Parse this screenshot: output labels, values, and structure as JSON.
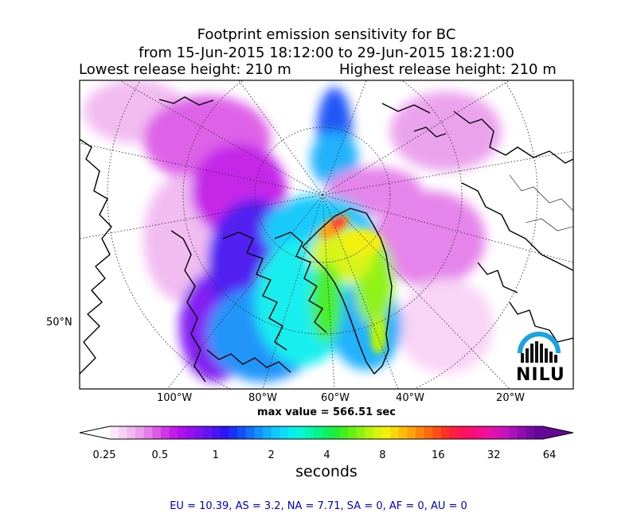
{
  "title": {
    "line1": "Footprint emission sensitivity for BC",
    "line2": "from 15-Jun-2015 18:12:00  to 29-Jun-2015 18:21:00",
    "line3_left": "Lowest release height: 210 m",
    "line3_right": "Highest release height: 210 m"
  },
  "colors": {
    "land_outline": "#000000",
    "graticule": "#333333",
    "logo_arc": "#1aa3e0",
    "logo_text": "#111111",
    "footer_text": "#0000cc"
  },
  "logo": {
    "text": "NILU",
    "icon": "nilu-logo-icon"
  },
  "max_value_text": "max value = 566.51 sec",
  "chart_data": {
    "type": "heatmap",
    "projection": "north polar stereographic",
    "x_ticks": [
      "100°W",
      "80°W",
      "60°W",
      "40°W",
      "20°W"
    ],
    "y_ticks": [
      "50°N"
    ],
    "colorbar": {
      "scale": "log",
      "ticks": [
        "0.25",
        "0.5",
        "1",
        "2",
        "4",
        "8",
        "16",
        "32",
        "64"
      ],
      "tick_values": [
        0.25,
        0.5,
        1,
        2,
        4,
        8,
        16,
        32,
        64
      ],
      "extend": "both",
      "label": "seconds",
      "colors": [
        "#fde8fb",
        "#f8d2f6",
        "#f1b9f0",
        "#ea9eec",
        "#e47ee9",
        "#dc5ae6",
        "#d236e6",
        "#c21ce8",
        "#ad12ec",
        "#9710f0",
        "#7e12f2",
        "#6414f2",
        "#4a14f2",
        "#2e14f2",
        "#1a30f4",
        "#1550f6",
        "#1470f8",
        "#1490fa",
        "#12aefb",
        "#10c8fb",
        "#0cdcf6",
        "#08eeee",
        "#06f6d6",
        "#06f6b0",
        "#08f488",
        "#0ef060",
        "#20ee3c",
        "#40ee20",
        "#66f014",
        "#8cf210",
        "#b4f40e",
        "#d8f40c",
        "#f4f00a",
        "#f8d80a",
        "#fabe0a",
        "#fca20a",
        "#fc860c",
        "#fc6a10",
        "#fc4e18",
        "#fc3226",
        "#fc1e3c",
        "#fc1456",
        "#fc0e70",
        "#f80e8a",
        "#ee10a0",
        "#dc12b2",
        "#c614bc",
        "#ac12bc",
        "#920eb2",
        "#7a0aa4",
        "#640696"
      ]
    },
    "max_value_sec": 566.51,
    "region_totals": [
      {
        "name": "EU",
        "value": 10.39
      },
      {
        "name": "AS",
        "value": 3.2
      },
      {
        "name": "NA",
        "value": 7.71
      },
      {
        "name": "SA",
        "value": 0
      },
      {
        "name": "AF",
        "value": 0
      },
      {
        "name": "AU",
        "value": 0
      }
    ],
    "footer_text": "EU = 10.39,  AS = 3.2,  NA = 7.71,  SA = 0,  AF = 0,  AU = 0"
  }
}
